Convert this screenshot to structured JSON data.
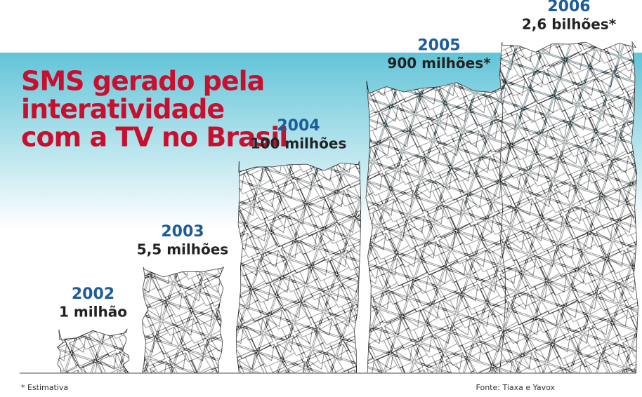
{
  "chart_data": {
    "type": "pictogram",
    "title": [
      "SMS gerado pela",
      "interatividade",
      "com a TV no Brasil"
    ],
    "categories": [
      "2002",
      "2003",
      "2004",
      "2005",
      "2006"
    ],
    "values": [
      1,
      5.5,
      100,
      900,
      2600
    ],
    "value_labels": [
      "1 milhão",
      "5,5 milhões",
      "100 milhões",
      "900 milhões*",
      "2,6 bilhões*"
    ],
    "log": true,
    "footnote": "* Estimativa",
    "source": "Fonte: Tiaxa e Yavox"
  }
}
